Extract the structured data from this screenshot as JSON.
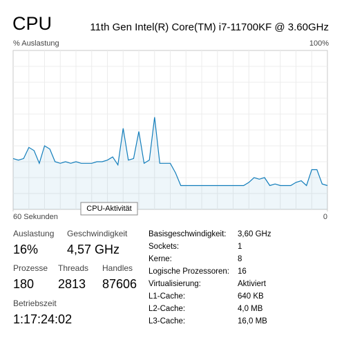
{
  "header": {
    "title": "CPU",
    "processor": "11th Gen Intel(R) Core(TM) i7-11700KF @ 3.60GHz"
  },
  "chart_data": {
    "type": "line",
    "ylabel": "% Auslastung",
    "x": [
      60,
      59,
      58,
      57,
      56,
      55,
      54,
      53,
      52,
      51,
      50,
      49,
      48,
      47,
      46,
      45,
      44,
      43,
      42,
      41,
      40,
      39,
      38,
      37,
      36,
      35,
      34,
      33,
      32,
      31,
      30,
      29,
      28,
      27,
      26,
      25,
      24,
      23,
      22,
      21,
      20,
      19,
      18,
      17,
      16,
      15,
      14,
      13,
      12,
      11,
      10,
      9,
      8,
      7,
      6,
      5,
      4,
      3,
      2,
      1,
      0
    ],
    "values": [
      32,
      31,
      32,
      39,
      37,
      29,
      40,
      38,
      30,
      29,
      30,
      29,
      30,
      29,
      29,
      29,
      30,
      30,
      31,
      33,
      28,
      51,
      31,
      32,
      49,
      29,
      31,
      58,
      29,
      29,
      29,
      23,
      15,
      15,
      15,
      15,
      15,
      15,
      15,
      15,
      15,
      15,
      15,
      15,
      15,
      17,
      20,
      19,
      20,
      15,
      16,
      15,
      15,
      15,
      17,
      18,
      15,
      25,
      25,
      16,
      15
    ],
    "color": "#117dbb",
    "xlim": [
      60,
      0
    ],
    "xticks": [
      {
        "value": 60,
        "label": "60 Sekunden"
      },
      0
    ],
    "ylim": [
      0,
      100
    ],
    "yticks": [
      {
        "value": 100,
        "label": "100%"
      }
    ],
    "grid": true,
    "tooltip": "CPU-Aktivität"
  },
  "stats": [
    {
      "label": "Auslastung",
      "value": "16%"
    },
    {
      "label": "Geschwindigkeit",
      "value": "4,57 GHz"
    },
    {
      "label": "Prozesse",
      "value": "180"
    },
    {
      "label": "Threads",
      "value": "2813"
    },
    {
      "label": "Handles",
      "value": "87606"
    },
    {
      "label": "Betriebszeit",
      "value": "1:17:24:02"
    }
  ],
  "details": [
    [
      "Basisgeschwindigkeit:",
      "3,60 GHz"
    ],
    [
      "Sockets:",
      "1"
    ],
    [
      "Kerne:",
      "8"
    ],
    [
      "Logische Prozessoren:",
      "16"
    ],
    [
      "Virtualisierung:",
      "Aktiviert"
    ],
    [
      "L1-Cache:",
      "640 KB"
    ],
    [
      "L2-Cache:",
      "4,0 MB"
    ],
    [
      "L3-Cache:",
      "16,0 MB"
    ]
  ]
}
